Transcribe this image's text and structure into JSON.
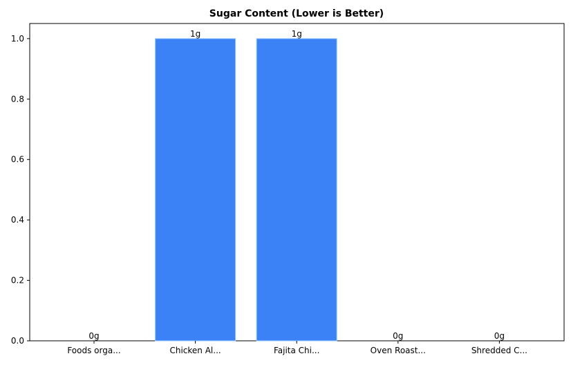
{
  "chart_data": {
    "type": "bar",
    "title": "Sugar Content (Lower is Better)",
    "xlabel": "",
    "ylabel": "",
    "categories": [
      "Foods orga...",
      "Chicken Al...",
      "Fajita Chi...",
      "Oven Roast...",
      "Shredded C..."
    ],
    "values": [
      0,
      1,
      1,
      0,
      0
    ],
    "data_labels": [
      "0g",
      "1g",
      "1g",
      "0g",
      "0g"
    ],
    "ylim": [
      0,
      1.05
    ],
    "yticks": [
      0.0,
      0.2,
      0.4,
      0.6,
      0.8,
      1.0
    ],
    "ytick_labels": [
      "0.0",
      "0.2",
      "0.4",
      "0.6",
      "0.8",
      "1.0"
    ],
    "grid": false,
    "legend": "none",
    "bar_color": "#3b82f6",
    "bar_edge_color": "#93c5fd"
  }
}
